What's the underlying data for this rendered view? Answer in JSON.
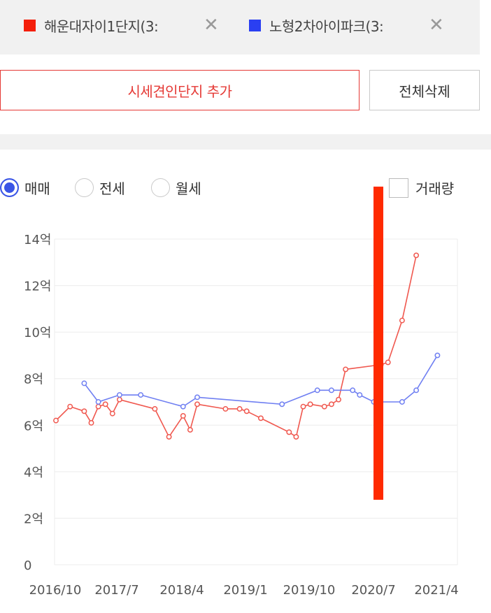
{
  "legend_chips": [
    {
      "label": "해운대자이1단지(3:",
      "color": "#f41e0a",
      "close": "✕"
    },
    {
      "label": "노형2차아이파크(3:",
      "color": "#2a3ff2",
      "close": "✕"
    }
  ],
  "buttons": {
    "add": "시세견인단지 추가",
    "delete_all": "전체삭제"
  },
  "deal_types": [
    {
      "label": "매매",
      "selected": true
    },
    {
      "label": "전세",
      "selected": false
    },
    {
      "label": "월세",
      "selected": false
    }
  ],
  "volume_toggle": {
    "label": "거래량",
    "checked": false
  },
  "chart_data": {
    "type": "line",
    "x_ticks": [
      "2016/10",
      "2017/7",
      "2018/4",
      "2019/1",
      "2019/10",
      "2020/7",
      "2021/4"
    ],
    "y_ticks": [
      "0",
      "2억",
      "4억",
      "6억",
      "8억",
      "10억",
      "12억",
      "14억"
    ],
    "ylim": [
      0,
      14
    ],
    "y_unit": "억",
    "grid": true,
    "series": [
      {
        "name": "해운대자이1단지(3:",
        "color": "#f0584f",
        "points": [
          [
            "2016-10",
            6.2
          ],
          [
            "2016-12",
            6.8
          ],
          [
            "2017-02",
            6.6
          ],
          [
            "2017-03",
            6.1
          ],
          [
            "2017-04",
            6.8
          ],
          [
            "2017-05",
            6.9
          ],
          [
            "2017-06",
            6.5
          ],
          [
            "2017-07",
            7.1
          ],
          [
            "2017-12",
            6.7
          ],
          [
            "2018-02",
            5.5
          ],
          [
            "2018-04",
            6.4
          ],
          [
            "2018-05",
            5.8
          ],
          [
            "2018-06",
            6.9
          ],
          [
            "2018-10",
            6.7
          ],
          [
            "2018-12",
            6.7
          ],
          [
            "2019-01",
            6.6
          ],
          [
            "2019-03",
            6.3
          ],
          [
            "2019-07",
            5.7
          ],
          [
            "2019-08",
            5.5
          ],
          [
            "2019-09",
            6.8
          ],
          [
            "2019-10",
            6.9
          ],
          [
            "2019-12",
            6.8
          ],
          [
            "2020-01",
            6.9
          ],
          [
            "2020-02",
            7.1
          ],
          [
            "2020-03",
            8.4
          ],
          [
            "2020-08",
            8.6
          ],
          [
            "2020-09",
            8.7
          ],
          [
            "2020-11",
            10.5
          ],
          [
            "2021-01",
            13.3
          ]
        ]
      },
      {
        "name": "노형2차아이파크(3:",
        "color": "#6f7ff2",
        "points": [
          [
            "2017-02",
            7.8
          ],
          [
            "2017-04",
            7.0
          ],
          [
            "2017-07",
            7.3
          ],
          [
            "2017-10",
            7.3
          ],
          [
            "2018-04",
            6.8
          ],
          [
            "2018-06",
            7.2
          ],
          [
            "2019-06",
            6.9
          ],
          [
            "2019-11",
            7.5
          ],
          [
            "2020-01",
            7.5
          ],
          [
            "2020-04",
            7.5
          ],
          [
            "2020-05",
            7.3
          ],
          [
            "2020-07",
            7.0
          ],
          [
            "2020-11",
            7.0
          ],
          [
            "2021-01",
            7.5
          ],
          [
            "2021-04",
            9.0
          ]
        ]
      }
    ]
  }
}
